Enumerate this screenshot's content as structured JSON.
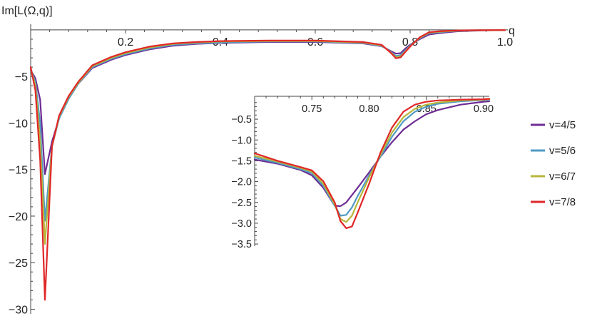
{
  "chart_data": [
    {
      "type": "line",
      "ylabel": "Im[L(Ω,q)]",
      "xlabel": "q",
      "xlim": [
        0,
        1.0
      ],
      "ylim": [
        -30.5,
        0.3
      ],
      "xticks": [
        0.2,
        0.4,
        0.6,
        0.8,
        1.0
      ],
      "xtick_labels": [
        "0.2",
        "0.4",
        "0.6",
        "0.8",
        "1.0"
      ],
      "yticks": [
        -5,
        -10,
        -15,
        -20,
        -25,
        -30
      ],
      "ytick_labels": [
        "−5",
        "−10",
        "−15",
        "−20",
        "−25",
        "−30"
      ],
      "grid": false,
      "series": [
        {
          "name": "v=4/5",
          "color": "#6e2d94",
          "x": [
            0.0,
            0.01,
            0.02,
            0.03,
            0.045,
            0.06,
            0.08,
            0.1,
            0.13,
            0.17,
            0.2,
            0.25,
            0.3,
            0.35,
            0.4,
            0.5,
            0.6,
            0.7,
            0.74,
            0.76,
            0.77,
            0.78,
            0.79,
            0.8,
            0.82,
            0.84,
            0.86,
            0.9,
            0.95,
            1.0
          ],
          "y": [
            -4.3,
            -5.2,
            -7.5,
            -15.5,
            -12.0,
            -9.5,
            -7.4,
            -5.8,
            -4.1,
            -3.2,
            -2.7,
            -2.1,
            -1.7,
            -1.5,
            -1.4,
            -1.3,
            -1.3,
            -1.45,
            -1.75,
            -2.3,
            -2.55,
            -2.5,
            -2.0,
            -1.6,
            -1.0,
            -0.5,
            -0.35,
            -0.15,
            -0.05,
            -0.02
          ]
        },
        {
          "name": "v=5/6",
          "color": "#4f9ac4",
          "x": [
            0.0,
            0.01,
            0.02,
            0.03,
            0.045,
            0.06,
            0.08,
            0.1,
            0.13,
            0.17,
            0.2,
            0.25,
            0.3,
            0.35,
            0.4,
            0.5,
            0.6,
            0.7,
            0.74,
            0.76,
            0.77,
            0.78,
            0.79,
            0.8,
            0.82,
            0.84,
            0.86,
            0.9,
            0.95,
            1.0
          ],
          "y": [
            -4.2,
            -5.6,
            -10.0,
            -20.5,
            -12.5,
            -9.5,
            -7.4,
            -5.8,
            -4.0,
            -3.1,
            -2.6,
            -2.0,
            -1.6,
            -1.45,
            -1.35,
            -1.25,
            -1.25,
            -1.4,
            -1.7,
            -2.4,
            -2.8,
            -2.7,
            -2.2,
            -1.7,
            -0.9,
            -0.35,
            -0.25,
            -0.1,
            -0.04,
            -0.02
          ]
        },
        {
          "name": "v=6/7",
          "color": "#b8b63a",
          "x": [
            0.0,
            0.01,
            0.02,
            0.03,
            0.045,
            0.06,
            0.08,
            0.1,
            0.13,
            0.17,
            0.2,
            0.25,
            0.3,
            0.35,
            0.4,
            0.5,
            0.6,
            0.7,
            0.74,
            0.76,
            0.77,
            0.78,
            0.79,
            0.8,
            0.82,
            0.84,
            0.86,
            0.9,
            0.95,
            1.0
          ],
          "y": [
            -4.1,
            -6.0,
            -12.0,
            -23.0,
            -12.5,
            -9.3,
            -7.2,
            -5.7,
            -3.9,
            -3.0,
            -2.5,
            -1.9,
            -1.5,
            -1.35,
            -1.25,
            -1.2,
            -1.2,
            -1.35,
            -1.65,
            -2.45,
            -2.95,
            -2.85,
            -2.3,
            -1.75,
            -0.85,
            -0.3,
            -0.2,
            -0.08,
            -0.03,
            -0.02
          ]
        },
        {
          "name": "v=7/8",
          "color": "#e02727",
          "x": [
            0.0,
            0.01,
            0.02,
            0.03,
            0.045,
            0.06,
            0.08,
            0.1,
            0.13,
            0.17,
            0.2,
            0.25,
            0.3,
            0.35,
            0.4,
            0.5,
            0.6,
            0.7,
            0.74,
            0.76,
            0.77,
            0.78,
            0.79,
            0.8,
            0.82,
            0.84,
            0.86,
            0.9,
            0.95,
            1.0
          ],
          "y": [
            -4.0,
            -6.5,
            -14.0,
            -29.0,
            -12.5,
            -9.2,
            -7.1,
            -5.6,
            -3.8,
            -2.9,
            -2.4,
            -1.8,
            -1.45,
            -1.3,
            -1.2,
            -1.15,
            -1.15,
            -1.3,
            -1.6,
            -2.5,
            -3.05,
            -2.95,
            -2.35,
            -1.8,
            -0.8,
            -0.25,
            -0.15,
            -0.06,
            -0.03,
            -0.02
          ]
        }
      ]
    },
    {
      "type": "line",
      "xlim": [
        0.7,
        0.905
      ],
      "ylim": [
        -3.55,
        0.05
      ],
      "xticks": [
        0.75,
        0.8,
        0.85,
        0.9
      ],
      "xtick_labels": [
        "0.75",
        "0.80",
        "0.85",
        "0.90"
      ],
      "yticks": [
        -0.5,
        -1.0,
        -1.5,
        -2.0,
        -2.5,
        -3.0,
        -3.5
      ],
      "ytick_labels": [
        "−0.5",
        "−1.0",
        "−1.5",
        "−2.0",
        "−2.5",
        "−3.0",
        "−3.5"
      ],
      "grid": false,
      "series": [
        {
          "name": "v=4/5",
          "color": "#6e2d94",
          "x": [
            0.7,
            0.72,
            0.74,
            0.75,
            0.76,
            0.77,
            0.775,
            0.78,
            0.79,
            0.8,
            0.81,
            0.82,
            0.83,
            0.84,
            0.85,
            0.86,
            0.88,
            0.9,
            0.905
          ],
          "y": [
            -1.47,
            -1.57,
            -1.72,
            -1.85,
            -2.15,
            -2.58,
            -2.59,
            -2.5,
            -2.15,
            -1.78,
            -1.4,
            -1.05,
            -0.75,
            -0.55,
            -0.38,
            -0.28,
            -0.15,
            -0.08,
            -0.07
          ]
        },
        {
          "name": "v=5/6",
          "color": "#4f9ac4",
          "x": [
            0.7,
            0.72,
            0.74,
            0.75,
            0.76,
            0.77,
            0.775,
            0.78,
            0.785,
            0.79,
            0.8,
            0.81,
            0.82,
            0.83,
            0.84,
            0.85,
            0.86,
            0.88,
            0.9,
            0.905
          ],
          "y": [
            -1.42,
            -1.55,
            -1.7,
            -1.8,
            -2.1,
            -2.58,
            -2.82,
            -2.8,
            -2.62,
            -2.35,
            -1.85,
            -1.4,
            -0.92,
            -0.55,
            -0.32,
            -0.2,
            -0.13,
            -0.07,
            -0.04,
            -0.03
          ]
        },
        {
          "name": "v=6/7",
          "color": "#b8b63a",
          "x": [
            0.7,
            0.72,
            0.74,
            0.75,
            0.76,
            0.77,
            0.775,
            0.78,
            0.785,
            0.79,
            0.8,
            0.81,
            0.82,
            0.83,
            0.84,
            0.85,
            0.86,
            0.88,
            0.9,
            0.905
          ],
          "y": [
            -1.38,
            -1.52,
            -1.67,
            -1.76,
            -2.05,
            -2.55,
            -2.9,
            -2.97,
            -2.82,
            -2.5,
            -1.9,
            -1.35,
            -0.82,
            -0.45,
            -0.25,
            -0.15,
            -0.1,
            -0.05,
            -0.03,
            -0.02
          ]
        },
        {
          "name": "v=7/8",
          "color": "#e02727",
          "x": [
            0.7,
            0.72,
            0.74,
            0.75,
            0.76,
            0.77,
            0.775,
            0.78,
            0.785,
            0.79,
            0.8,
            0.81,
            0.82,
            0.83,
            0.84,
            0.85,
            0.86,
            0.88,
            0.9,
            0.905
          ],
          "y": [
            -1.32,
            -1.5,
            -1.65,
            -1.73,
            -1.99,
            -2.5,
            -2.95,
            -3.12,
            -3.08,
            -2.75,
            -2.05,
            -1.3,
            -0.7,
            -0.32,
            -0.15,
            -0.08,
            -0.05,
            -0.03,
            -0.02,
            -0.01
          ]
        }
      ]
    }
  ]
}
